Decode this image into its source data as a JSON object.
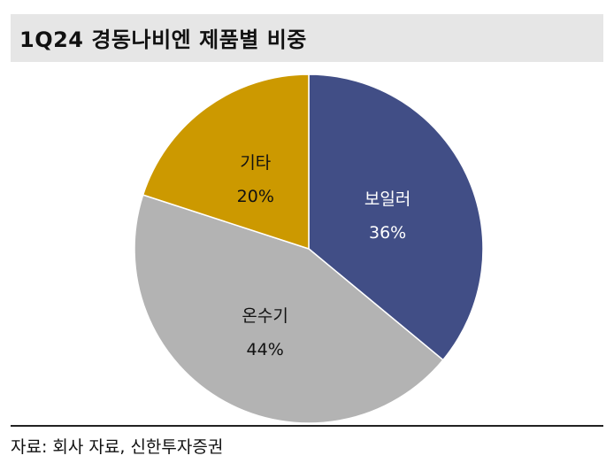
{
  "title": "1Q24 경동나비엔 제품별 비중",
  "source": "자료: 회사 자료, 신한투자증권",
  "chart_data": {
    "type": "pie",
    "title": "1Q24 경동나비엔 제품별 비중",
    "slices": [
      {
        "label": "보일러",
        "value": 36,
        "value_label": "36%",
        "color": "#414e86",
        "text_color": "#ffffff"
      },
      {
        "label": "온수기",
        "value": 44,
        "value_label": "44%",
        "color": "#b3b3b3",
        "text_color": "#111111"
      },
      {
        "label": "기타",
        "value": 20,
        "value_label": "20%",
        "color": "#cc9900",
        "text_color": "#111111"
      }
    ],
    "start_angle": "12 o'clock",
    "direction": "clockwise",
    "legend": "none"
  }
}
